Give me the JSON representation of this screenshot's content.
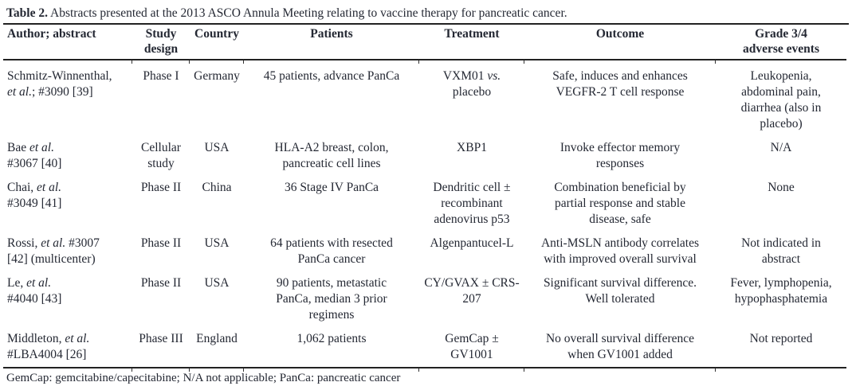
{
  "colors": {
    "text": "#242833",
    "rule": "#222222",
    "background": "#ffffff"
  },
  "table": {
    "title_label": "Table 2.",
    "title_text": " Abstracts presented at the 2013 ASCO Annula Meeting relating to vaccine therapy for pancreatic cancer.",
    "columns": [
      "Author; abstract",
      "Study\ndesign",
      "Country",
      "Patients",
      "Treatment",
      "Outcome",
      "Grade 3/4\nadverse events"
    ],
    "rows": [
      [
        "Schmitz-Winnenthal,\n*et al.*; #3090 [39]",
        "Phase I",
        "Germany",
        "45 patients, advance PanCa",
        "VXM01 *vs.*\nplacebo",
        "Safe, induces and enhances\nVEGFR-2 T cell response",
        "Leukopenia,\nabdominal pain,\ndiarrhea (also in\nplacebo)"
      ],
      [
        "Bae *et al.*\n#3067 [40]",
        "Cellular\nstudy",
        "USA",
        "HLA-A2 breast, colon,\npancreatic cell lines",
        "XBP1",
        "Invoke effector memory\nresponses",
        "N/A"
      ],
      [
        "Chai, *et al.*\n#3049 [41]",
        "Phase II",
        "China",
        "36 Stage IV PanCa",
        "Dendritic cell ±\nrecombinant\nadenovirus p53",
        "Combination beneficial by\npartial response and stable\ndisease, safe",
        "None"
      ],
      [
        "Rossi, *et al.* #3007\n[42] (multicenter)",
        "Phase II",
        "USA",
        "64 patients with resected\nPanCa cancer",
        "Algenpantucel-L",
        "Anti-MSLN antibody correlates\nwith improved overall survival",
        "Not indicated in\nabstract"
      ],
      [
        "Le, *et al.*\n#4040 [43]",
        "Phase II",
        "USA",
        "90 patients, metastatic\nPanCa, median 3 prior\nregimens",
        "CY/GVAX ± CRS-\n207",
        "Significant survival difference.\nWell tolerated",
        "Fever, lymphopenia,\nhypophasphatemia"
      ],
      [
        "Middleton, *et al.*\n#LBA4004 [26]",
        "Phase III",
        "England",
        "1,062 patients",
        "GemCap ±\nGV1001",
        "No overall survival difference\nwhen GV1001 added",
        "Not reported"
      ]
    ],
    "footnote": "GemCap: gemcitabine/capecitabine; N/A not applicable; PanCa: pancreatic cancer"
  }
}
